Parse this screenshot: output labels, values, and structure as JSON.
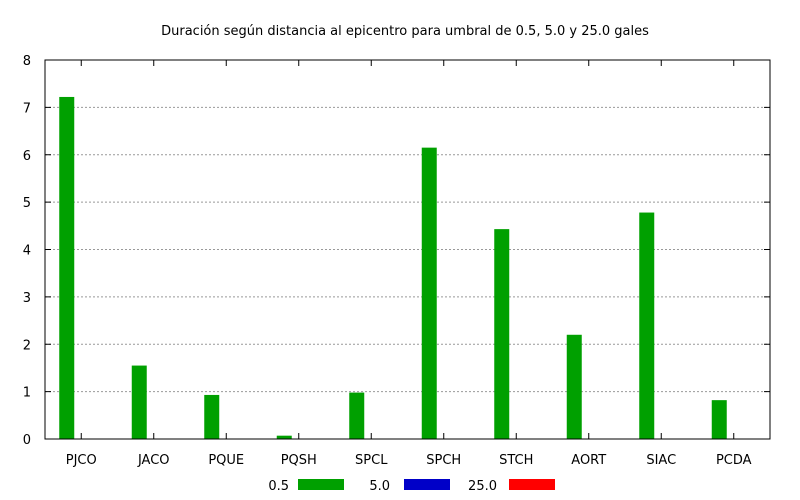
{
  "chart_data": {
    "type": "bar",
    "title": "Duración según distancia al epicentro para umbral de 0.5, 5.0 y 25.0 gales",
    "categories": [
      "PJCO",
      "JACO",
      "PQUE",
      "PQSH",
      "SPCL",
      "SPCH",
      "STCH",
      "AORT",
      "SIAC",
      "PCDA"
    ],
    "series": [
      {
        "name": "0.5",
        "color": "#00a000",
        "values": [
          7.22,
          1.55,
          0.93,
          0.07,
          0.98,
          6.15,
          4.43,
          2.2,
          4.78,
          0.82
        ]
      },
      {
        "name": "5.0",
        "color": "#0000c8",
        "values": [
          0,
          0,
          0,
          0,
          0,
          0,
          0,
          0,
          0,
          0
        ]
      },
      {
        "name": "25.0",
        "color": "#ff0000",
        "values": [
          0,
          0,
          0,
          0,
          0,
          0,
          0,
          0,
          0,
          0
        ]
      }
    ],
    "ylim": [
      0,
      8
    ],
    "yticks": [
      "0",
      "1",
      "2",
      "3",
      "4",
      "5",
      "6",
      "7",
      "8"
    ],
    "grid": true,
    "legend_position": "bottom"
  }
}
